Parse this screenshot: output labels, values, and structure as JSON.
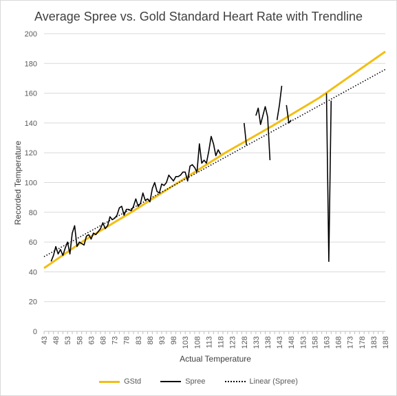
{
  "chart_data": {
    "type": "line",
    "title": "Average Spree vs. Gold Standard Heart Rate with Trendline",
    "xlabel": "Actual Temperature",
    "ylabel": "Recorded Temperature",
    "xlim": [
      43,
      188
    ],
    "ylim": [
      0,
      200
    ],
    "y_ticks": [
      0,
      20,
      40,
      60,
      80,
      100,
      120,
      140,
      160,
      180,
      200
    ],
    "x_tick_start": 43,
    "x_tick_step": 2,
    "grid": "horizontal",
    "legend_position": "bottom",
    "series": [
      {
        "name": "GStd",
        "color": "#f2be12",
        "style": "solid",
        "points": [
          [
            43,
            42.5
          ],
          [
            60,
            61
          ],
          [
            80,
            80
          ],
          [
            100,
            100
          ],
          [
            120,
            120
          ],
          [
            140,
            138
          ],
          [
            160,
            157
          ],
          [
            188,
            188
          ]
        ]
      },
      {
        "name": "Spree",
        "color": "#000000",
        "style": "solid",
        "points": [
          [
            46,
            47
          ],
          [
            47,
            51
          ],
          [
            48,
            57
          ],
          [
            49,
            52
          ],
          [
            50,
            55
          ],
          [
            51,
            51
          ],
          [
            52,
            56
          ],
          [
            53,
            60
          ],
          [
            54,
            52
          ],
          [
            55,
            66
          ],
          [
            56,
            71
          ],
          [
            57,
            57
          ],
          [
            58,
            60
          ],
          [
            59,
            59
          ],
          [
            60,
            58
          ],
          [
            61,
            64
          ],
          [
            62,
            65
          ],
          [
            63,
            62
          ],
          [
            64,
            66
          ],
          [
            65,
            65
          ],
          [
            66,
            67
          ],
          [
            67,
            69
          ],
          [
            68,
            73
          ],
          [
            69,
            69
          ],
          [
            70,
            71
          ],
          [
            71,
            77
          ],
          [
            72,
            75
          ],
          [
            73,
            76
          ],
          [
            74,
            78
          ],
          [
            75,
            83
          ],
          [
            76,
            84
          ],
          [
            77,
            78
          ],
          [
            78,
            82
          ],
          [
            79,
            82
          ],
          [
            80,
            81
          ],
          [
            81,
            84
          ],
          [
            82,
            89
          ],
          [
            83,
            84
          ],
          [
            84,
            86
          ],
          [
            85,
            93
          ],
          [
            86,
            88
          ],
          [
            87,
            89
          ],
          [
            88,
            87
          ],
          [
            89,
            96
          ],
          [
            90,
            100
          ],
          [
            91,
            94
          ],
          [
            92,
            93
          ],
          [
            93,
            99
          ],
          [
            94,
            98
          ],
          [
            95,
            100
          ],
          [
            96,
            105
          ],
          [
            97,
            103
          ],
          [
            98,
            101
          ],
          [
            99,
            104
          ],
          [
            100,
            104
          ],
          [
            101,
            105
          ],
          [
            102,
            107
          ],
          [
            103,
            107
          ],
          [
            104,
            101
          ],
          [
            105,
            111
          ],
          [
            106,
            112
          ],
          [
            107,
            110
          ],
          [
            108,
            107
          ],
          [
            109,
            126
          ],
          [
            110,
            113
          ],
          [
            111,
            115
          ],
          [
            112,
            113
          ],
          [
            113,
            121
          ],
          [
            114,
            131
          ],
          [
            115,
            126
          ],
          [
            116,
            118
          ],
          [
            117,
            122
          ],
          [
            118,
            119
          ],
          null,
          [
            128,
            140
          ],
          [
            129,
            125
          ],
          null,
          [
            133,
            145
          ],
          [
            134,
            150
          ],
          [
            135,
            139
          ],
          [
            136,
            145
          ],
          [
            137,
            151
          ],
          [
            138,
            144
          ],
          [
            139,
            115
          ],
          null,
          [
            142,
            142
          ],
          [
            143,
            152
          ],
          [
            144,
            165
          ],
          null,
          [
            146,
            152
          ],
          [
            147,
            140
          ],
          [
            148,
            142
          ],
          null,
          [
            163,
            160
          ],
          [
            164,
            47
          ],
          [
            165,
            155
          ]
        ]
      },
      {
        "name": "Linear (Spree)",
        "color": "#000000",
        "style": "dotted",
        "points": [
          [
            43,
            50.2
          ],
          [
            188,
            176
          ]
        ]
      }
    ]
  }
}
